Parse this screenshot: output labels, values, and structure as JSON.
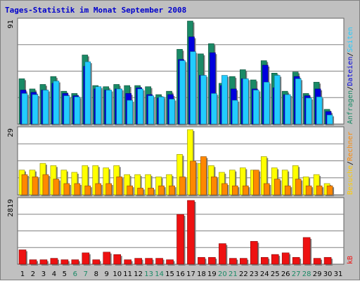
{
  "title": "Tages-Statistik im Monat September 2008",
  "colors": {
    "background": "#c0c0c0",
    "panel": "#ffffff",
    "title": "#0000cc",
    "grid": "#808080",
    "anfragen": "#1a8a66",
    "dateien": "#0000dd",
    "seiten": "#22ccff",
    "besuche": "#ffff00",
    "rechner": "#ff8800",
    "kb": "#ee1111",
    "weekday": "#000000",
    "weekend": "#1a8a66"
  },
  "chart_data": [
    {
      "type": "bar",
      "panel": "top",
      "ymax_label": "91",
      "ylim": [
        0,
        91
      ],
      "x": [
        1,
        2,
        3,
        4,
        5,
        6,
        7,
        8,
        9,
        10,
        11,
        12,
        13,
        14,
        15,
        16,
        17,
        18,
        19,
        20,
        21,
        22,
        23,
        24,
        25,
        26,
        27,
        28,
        29,
        30,
        31
      ],
      "series": [
        {
          "name": "Anfragen",
          "values": [
            40,
            31,
            35,
            42,
            29,
            27,
            61,
            34,
            33,
            35,
            34,
            34,
            33,
            26,
            29,
            66,
            91,
            62,
            71,
            36,
            42,
            48,
            39,
            56,
            45,
            29,
            46,
            27,
            37,
            13,
            0
          ]
        },
        {
          "name": "Dateien",
          "values": [
            30,
            28,
            30,
            36,
            27,
            25,
            51,
            31,
            30,
            31,
            27,
            32,
            26,
            23,
            26,
            57,
            77,
            43,
            63,
            34,
            31,
            40,
            31,
            52,
            32,
            26,
            42,
            25,
            31,
            11,
            0
          ]
        },
        {
          "name": "Seiten",
          "values": [
            27,
            26,
            30,
            38,
            25,
            24,
            55,
            33,
            30,
            31,
            21,
            31,
            25,
            24,
            22,
            56,
            64,
            43,
            27,
            43,
            21,
            40,
            30,
            37,
            43,
            26,
            40,
            23,
            24,
            8,
            0
          ]
        }
      ]
    },
    {
      "type": "bar",
      "panel": "middle",
      "ymax_label": "29",
      "ylim": [
        0,
        29
      ],
      "x": [
        1,
        2,
        3,
        4,
        5,
        6,
        7,
        8,
        9,
        10,
        11,
        12,
        13,
        14,
        15,
        16,
        17,
        18,
        19,
        20,
        21,
        22,
        23,
        24,
        25,
        26,
        27,
        28,
        29,
        30,
        31
      ],
      "series": [
        {
          "name": "Besuche",
          "values": [
            11,
            11,
            14,
            13,
            11,
            10,
            13,
            13,
            12,
            13,
            9,
            9,
            9,
            8,
            9,
            18,
            29,
            14,
            13,
            10,
            11,
            12,
            11,
            17,
            12,
            11,
            13,
            8,
            9,
            5,
            0
          ]
        },
        {
          "name": "Rechner",
          "values": [
            9,
            8,
            9,
            7,
            5,
            5,
            4,
            5,
            5,
            8,
            4,
            3,
            3,
            4,
            4,
            8,
            15,
            17,
            8,
            5,
            4,
            4,
            11,
            5,
            7,
            4,
            7,
            4,
            4,
            4,
            0
          ]
        }
      ]
    },
    {
      "type": "bar",
      "panel": "bottom",
      "ymax_label": "2819",
      "ylim": [
        0,
        2819
      ],
      "x": [
        1,
        2,
        3,
        4,
        5,
        6,
        7,
        8,
        9,
        10,
        11,
        12,
        13,
        14,
        15,
        16,
        17,
        18,
        19,
        20,
        21,
        22,
        23,
        24,
        25,
        26,
        27,
        28,
        29,
        30,
        31
      ],
      "series": [
        {
          "name": "kB",
          "values": [
            635,
            197,
            197,
            260,
            197,
            197,
            501,
            197,
            534,
            427,
            197,
            260,
            260,
            260,
            197,
            2200,
            2819,
            302,
            302,
            910,
            260,
            260,
            1010,
            302,
            430,
            501,
            302,
            1180,
            260,
            302,
            0
          ]
        }
      ]
    }
  ],
  "x_ticks": [
    "1",
    "2",
    "3",
    "4",
    "5",
    "6",
    "7",
    "8",
    "9",
    "10",
    "11",
    "12",
    "13",
    "14",
    "15",
    "16",
    "17",
    "18",
    "19",
    "20",
    "21",
    "22",
    "23",
    "24",
    "25",
    "26",
    "27",
    "28",
    "29",
    "30",
    "31"
  ],
  "weekend_days": [
    6,
    7,
    13,
    14,
    20,
    21,
    27,
    28
  ],
  "right_labels": {
    "top": [
      {
        "text": "Anfragen",
        "color": "#1a8a66"
      },
      {
        "text": "/",
        "color": "#000000"
      },
      {
        "text": "Dateien",
        "color": "#0000dd"
      },
      {
        "text": "/",
        "color": "#000000"
      },
      {
        "text": "Seiten",
        "color": "#22ccff"
      }
    ],
    "middle": [
      {
        "text": "Besuche",
        "color": "#ffcc00"
      },
      {
        "text": "/",
        "color": "#000000"
      },
      {
        "text": "Rechner",
        "color": "#ff8800"
      }
    ],
    "bottom": [
      {
        "text": "kB",
        "color": "#ee1111"
      }
    ]
  }
}
